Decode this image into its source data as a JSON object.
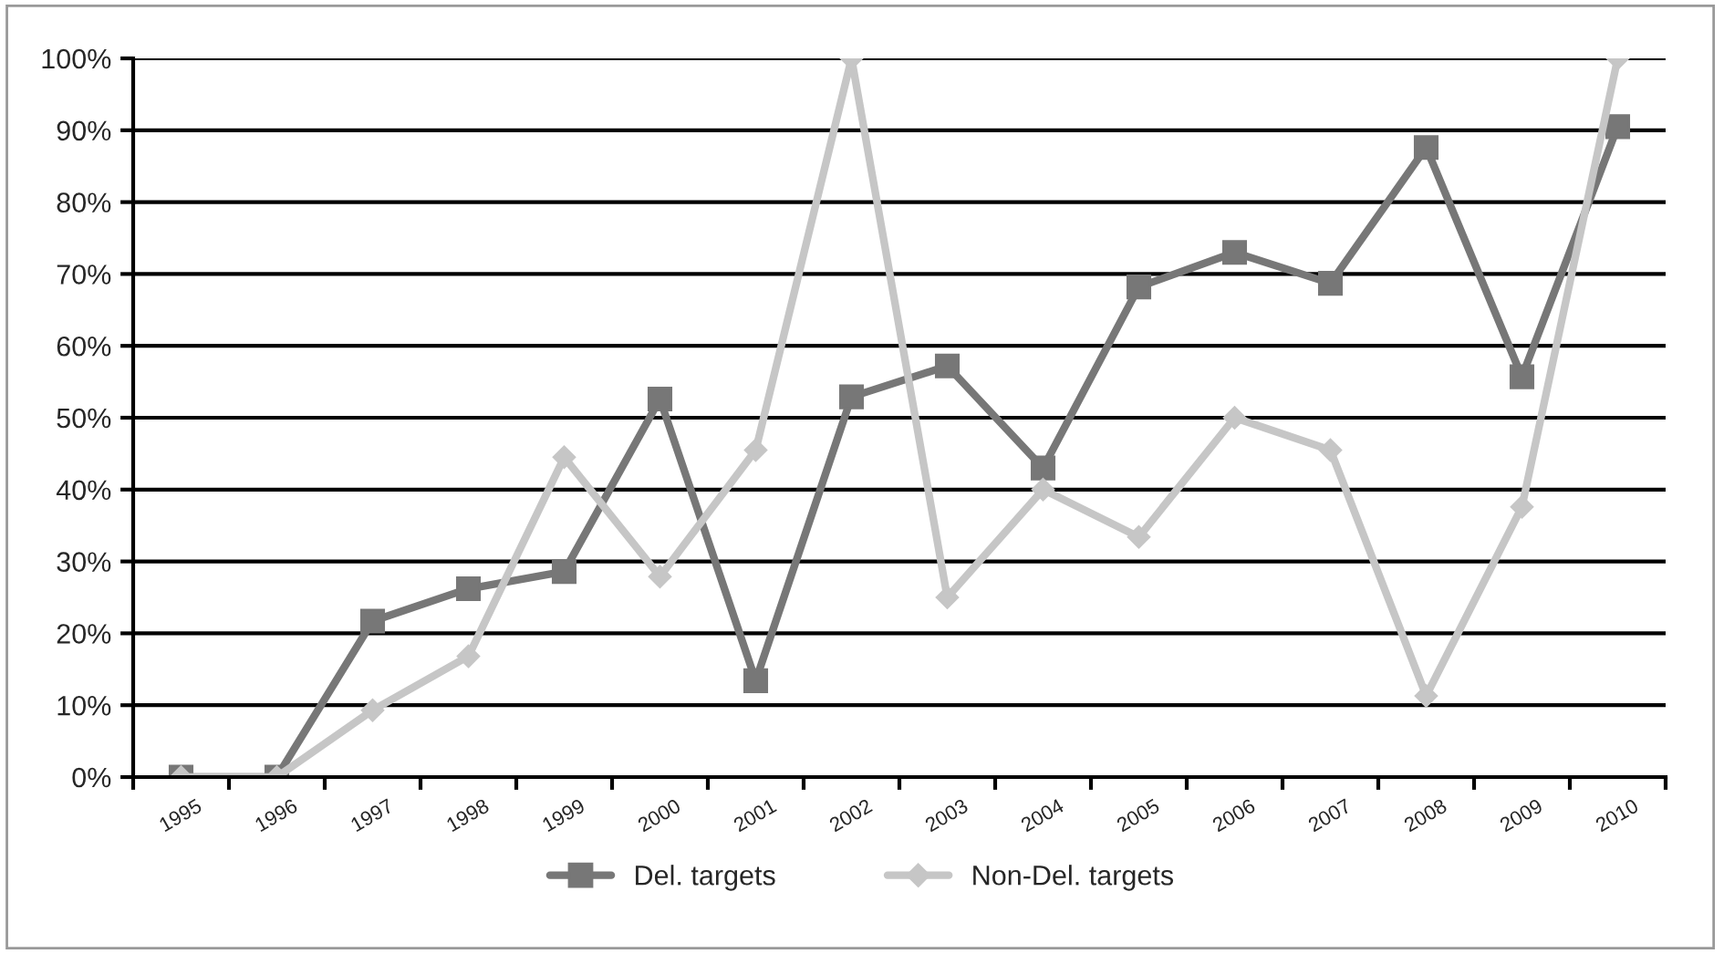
{
  "chart_data": {
    "type": "line",
    "categories": [
      "1995",
      "1996",
      "1997",
      "1998",
      "1999",
      "2000",
      "2001",
      "2002",
      "2003",
      "2004",
      "2005",
      "2006",
      "2007",
      "2008",
      "2009",
      "2010"
    ],
    "series": [
      {
        "name": "Del. targets",
        "color": "#777777",
        "marker": "square",
        "values": [
          0,
          0,
          21.7,
          26.2,
          28.6,
          52.6,
          13.4,
          52.9,
          57.2,
          43.0,
          68.2,
          73.0,
          68.7,
          87.6,
          55.7,
          90.5
        ]
      },
      {
        "name": "Non-Del. targets",
        "color": "#c6c6c6",
        "marker": "diamond",
        "values": [
          0,
          0,
          9.3,
          16.8,
          44.5,
          27.9,
          45.5,
          100,
          25,
          40,
          33.4,
          50,
          45.5,
          11.3,
          37.6,
          100
        ]
      }
    ],
    "ylim": [
      0,
      100
    ],
    "yticks": [
      {
        "value": 0,
        "label": "0%"
      },
      {
        "value": 10,
        "label": "10%"
      },
      {
        "value": 20,
        "label": "20%"
      },
      {
        "value": 30,
        "label": "30%"
      },
      {
        "value": 40,
        "label": "40%"
      },
      {
        "value": 50,
        "label": "50%"
      },
      {
        "value": 60,
        "label": "60%"
      },
      {
        "value": 70,
        "label": "70%"
      },
      {
        "value": 80,
        "label": "80%"
      },
      {
        "value": 90,
        "label": "90%"
      },
      {
        "value": 100,
        "label": "100%"
      }
    ],
    "grid": "y",
    "legend": "bottom",
    "line_style": "solid"
  }
}
